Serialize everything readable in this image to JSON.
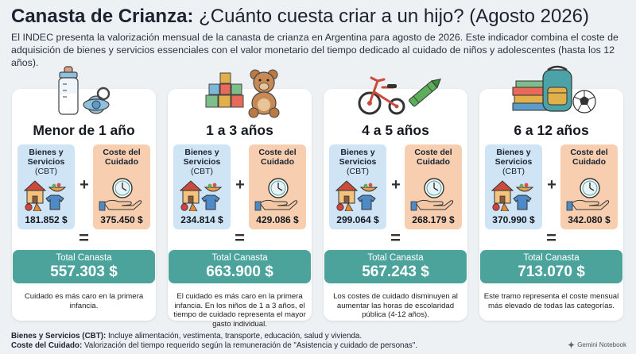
{
  "header": {
    "title_bold": "Canasta de Crianza:",
    "title_rest": " ¿Cuánto cuesta criar a un hijo? (Agosto 2026)",
    "intro": "El INDEC presenta la valorización mensual de la canasta de crianza en Argentina para agosto de 2026. Este indicador combina el coste de adquisición de bienes y servicios essenciales con el valor monetario del tiempo dedicado al cuidado de niños y adolescentes (hasta los 12 años)."
  },
  "labels": {
    "cbt_title": "Bienes y Servicios",
    "cbt_sub": "(CBT)",
    "care_title": "Coste del Cuidado",
    "plus": "+",
    "equals": "=",
    "total_label": "Total Canasta"
  },
  "groups": [
    {
      "age": "Menor de 1 año",
      "cbt": "181.852 $",
      "care": "375.450 $",
      "total": "557.303 $",
      "note": "Cuidado es más caro en la primera infancia.",
      "illustration": "baby-bottle-pacifier-icon"
    },
    {
      "age": "1 a 3 años",
      "cbt": "234.814 $",
      "care": "429.086 $",
      "total": "663.900 $",
      "note": "El cuidado es más caro en la primera infancia. En los niños de 1 a 3 años, el tiempo de cuidado representa el mayor gasto individual.",
      "illustration": "blocks-teddy-bear-icon"
    },
    {
      "age": "4 a 5 años",
      "cbt": "299.064 $",
      "care": "268.179 $",
      "total": "567.243 $",
      "note": "Los costes de cuidado disminuyen al aumentar las horas de escolaridad pública (4-12 años).",
      "illustration": "tricycle-crayon-icon"
    },
    {
      "age": "6 a 12 años",
      "cbt": "370.990 $",
      "care": "342.080 $",
      "total": "713.070 $",
      "note": "Este tramo representa el coste mensual más elevado de todas las categorías.",
      "illustration": "books-backpack-ball-icon"
    }
  ],
  "footer": {
    "cbt_label": "Bienes y Servicios (CBT):",
    "cbt_text": " Incluye alimentación, vestimenta, transporte, educación, salud y vivienda.",
    "care_label": "Coste del Cuidado:",
    "care_text": " Valorización del tiempo requerido según la remuneración de \"Asistencia y cuidado de personas\"."
  },
  "brand": "Gemini Notebook",
  "colors": {
    "cbt_box": "#cfe4f5",
    "care_box": "#f7cfb0",
    "total_bar": "#4ba39c",
    "background": "#eef1f4"
  }
}
